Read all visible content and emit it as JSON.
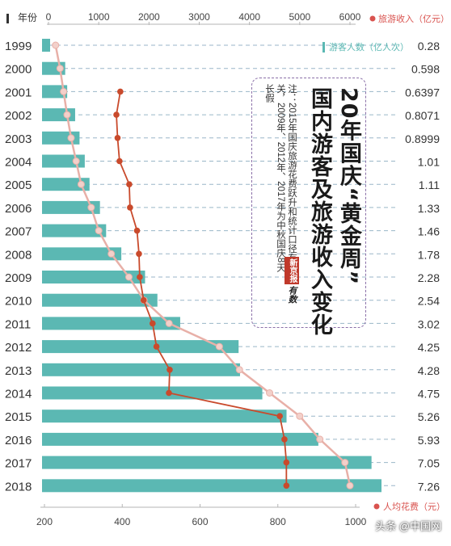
{
  "chart_data": {
    "type": "bar",
    "title": "20年国庆“黄金周”国内游客及旅游收入变化",
    "note": "注：2015年国庆旅游花费跃升和统计口径有关，2009年、2012年、2017年为中秋国庆8天长假",
    "categories": [
      "1999",
      "2000",
      "2001",
      "2002",
      "2003",
      "2004",
      "2005",
      "2006",
      "2007",
      "2008",
      "2009",
      "2010",
      "2011",
      "2012",
      "2013",
      "2014",
      "2015",
      "2016",
      "2017",
      "2018"
    ],
    "year_axis_label": "年份",
    "top_axis": {
      "label": "旅游收入（亿元）",
      "ticks": [
        0,
        1000,
        2000,
        3000,
        4000,
        5000,
        6000
      ],
      "range": [
        0,
        6000
      ]
    },
    "bottom_axis": {
      "label": "人均花费（元）",
      "ticks": [
        200,
        400,
        600,
        800,
        1000
      ],
      "range": [
        200,
        1000
      ]
    },
    "series": [
      {
        "name": "游客人数（亿人次）",
        "kind": "bar",
        "values": [
          0.28,
          0.598,
          0.6397,
          0.8071,
          0.8999,
          1.01,
          1.11,
          1.33,
          1.46,
          1.78,
          2.28,
          2.54,
          3.02,
          4.25,
          4.28,
          4.75,
          5.26,
          5.93,
          7.05,
          7.26
        ],
        "labels": [
          "0.28",
          "0.598",
          "0.6397",
          "0.8071",
          "0.8999",
          "1.01",
          "1.11",
          "1.33",
          "1.46",
          "1.78",
          "2.28",
          "2.54",
          "3.02",
          "4.25",
          "4.28",
          "4.75",
          "5.26",
          "5.93",
          "7.05",
          "7.26"
        ]
      },
      {
        "name": "旅游收入（亿元）",
        "kind": "line",
        "values": [
          141,
          230,
          300,
          370,
          450,
          550,
          650,
          850,
          1000,
          1250,
          1600,
          1900,
          2400,
          3400,
          3800,
          4400,
          5000,
          5400,
          5900,
          6000
        ]
      },
      {
        "name": "人均花费（元）",
        "kind": "line",
        "values": null
      }
    ],
    "per_capita_values": [
      null,
      null,
      395,
      385,
      388,
      393,
      418,
      420,
      438,
      443,
      445,
      455,
      478,
      488,
      522,
      520,
      805,
      817,
      822,
      822
    ],
    "colors": {
      "bar": "#5bb8b3",
      "revenue_line": "#e8b0a8",
      "revenue_point": "#f3d0ca",
      "per_capita_line": "#c94a2c",
      "axis_label_dot": "#d9534f"
    }
  },
  "logo_text": [
    "新京报",
    "有数"
  ],
  "watermark": "头条 @中国网"
}
